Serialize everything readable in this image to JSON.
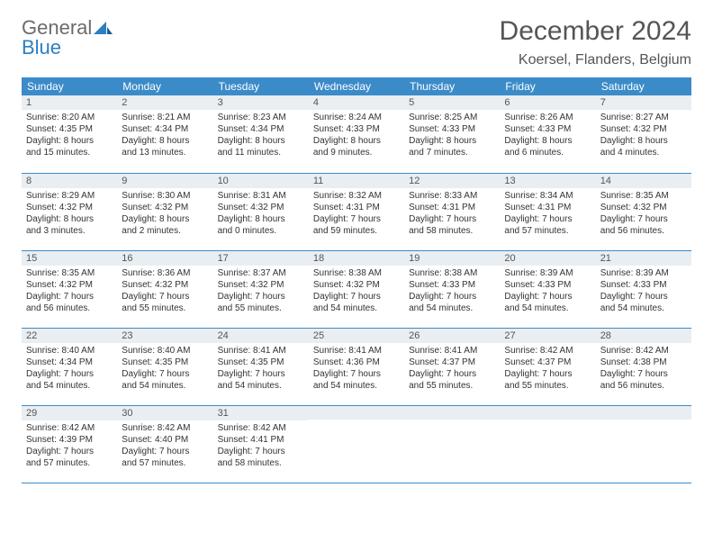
{
  "logo": {
    "word1": "General",
    "word2": "Blue"
  },
  "title": "December 2024",
  "location": "Koersel, Flanders, Belgium",
  "colors": {
    "header_bg": "#3b8bc9",
    "header_text": "#ffffff",
    "daynum_bg": "#e9eef2",
    "text": "#333333",
    "rule": "#3b8bc9",
    "logo_gray": "#6b6b6b",
    "logo_blue": "#2b7fc3"
  },
  "day_headers": [
    "Sunday",
    "Monday",
    "Tuesday",
    "Wednesday",
    "Thursday",
    "Friday",
    "Saturday"
  ],
  "weeks": [
    [
      {
        "n": "1",
        "sr": "Sunrise: 8:20 AM",
        "ss": "Sunset: 4:35 PM",
        "d1": "Daylight: 8 hours",
        "d2": "and 15 minutes."
      },
      {
        "n": "2",
        "sr": "Sunrise: 8:21 AM",
        "ss": "Sunset: 4:34 PM",
        "d1": "Daylight: 8 hours",
        "d2": "and 13 minutes."
      },
      {
        "n": "3",
        "sr": "Sunrise: 8:23 AM",
        "ss": "Sunset: 4:34 PM",
        "d1": "Daylight: 8 hours",
        "d2": "and 11 minutes."
      },
      {
        "n": "4",
        "sr": "Sunrise: 8:24 AM",
        "ss": "Sunset: 4:33 PM",
        "d1": "Daylight: 8 hours",
        "d2": "and 9 minutes."
      },
      {
        "n": "5",
        "sr": "Sunrise: 8:25 AM",
        "ss": "Sunset: 4:33 PM",
        "d1": "Daylight: 8 hours",
        "d2": "and 7 minutes."
      },
      {
        "n": "6",
        "sr": "Sunrise: 8:26 AM",
        "ss": "Sunset: 4:33 PM",
        "d1": "Daylight: 8 hours",
        "d2": "and 6 minutes."
      },
      {
        "n": "7",
        "sr": "Sunrise: 8:27 AM",
        "ss": "Sunset: 4:32 PM",
        "d1": "Daylight: 8 hours",
        "d2": "and 4 minutes."
      }
    ],
    [
      {
        "n": "8",
        "sr": "Sunrise: 8:29 AM",
        "ss": "Sunset: 4:32 PM",
        "d1": "Daylight: 8 hours",
        "d2": "and 3 minutes."
      },
      {
        "n": "9",
        "sr": "Sunrise: 8:30 AM",
        "ss": "Sunset: 4:32 PM",
        "d1": "Daylight: 8 hours",
        "d2": "and 2 minutes."
      },
      {
        "n": "10",
        "sr": "Sunrise: 8:31 AM",
        "ss": "Sunset: 4:32 PM",
        "d1": "Daylight: 8 hours",
        "d2": "and 0 minutes."
      },
      {
        "n": "11",
        "sr": "Sunrise: 8:32 AM",
        "ss": "Sunset: 4:31 PM",
        "d1": "Daylight: 7 hours",
        "d2": "and 59 minutes."
      },
      {
        "n": "12",
        "sr": "Sunrise: 8:33 AM",
        "ss": "Sunset: 4:31 PM",
        "d1": "Daylight: 7 hours",
        "d2": "and 58 minutes."
      },
      {
        "n": "13",
        "sr": "Sunrise: 8:34 AM",
        "ss": "Sunset: 4:31 PM",
        "d1": "Daylight: 7 hours",
        "d2": "and 57 minutes."
      },
      {
        "n": "14",
        "sr": "Sunrise: 8:35 AM",
        "ss": "Sunset: 4:32 PM",
        "d1": "Daylight: 7 hours",
        "d2": "and 56 minutes."
      }
    ],
    [
      {
        "n": "15",
        "sr": "Sunrise: 8:35 AM",
        "ss": "Sunset: 4:32 PM",
        "d1": "Daylight: 7 hours",
        "d2": "and 56 minutes."
      },
      {
        "n": "16",
        "sr": "Sunrise: 8:36 AM",
        "ss": "Sunset: 4:32 PM",
        "d1": "Daylight: 7 hours",
        "d2": "and 55 minutes."
      },
      {
        "n": "17",
        "sr": "Sunrise: 8:37 AM",
        "ss": "Sunset: 4:32 PM",
        "d1": "Daylight: 7 hours",
        "d2": "and 55 minutes."
      },
      {
        "n": "18",
        "sr": "Sunrise: 8:38 AM",
        "ss": "Sunset: 4:32 PM",
        "d1": "Daylight: 7 hours",
        "d2": "and 54 minutes."
      },
      {
        "n": "19",
        "sr": "Sunrise: 8:38 AM",
        "ss": "Sunset: 4:33 PM",
        "d1": "Daylight: 7 hours",
        "d2": "and 54 minutes."
      },
      {
        "n": "20",
        "sr": "Sunrise: 8:39 AM",
        "ss": "Sunset: 4:33 PM",
        "d1": "Daylight: 7 hours",
        "d2": "and 54 minutes."
      },
      {
        "n": "21",
        "sr": "Sunrise: 8:39 AM",
        "ss": "Sunset: 4:33 PM",
        "d1": "Daylight: 7 hours",
        "d2": "and 54 minutes."
      }
    ],
    [
      {
        "n": "22",
        "sr": "Sunrise: 8:40 AM",
        "ss": "Sunset: 4:34 PM",
        "d1": "Daylight: 7 hours",
        "d2": "and 54 minutes."
      },
      {
        "n": "23",
        "sr": "Sunrise: 8:40 AM",
        "ss": "Sunset: 4:35 PM",
        "d1": "Daylight: 7 hours",
        "d2": "and 54 minutes."
      },
      {
        "n": "24",
        "sr": "Sunrise: 8:41 AM",
        "ss": "Sunset: 4:35 PM",
        "d1": "Daylight: 7 hours",
        "d2": "and 54 minutes."
      },
      {
        "n": "25",
        "sr": "Sunrise: 8:41 AM",
        "ss": "Sunset: 4:36 PM",
        "d1": "Daylight: 7 hours",
        "d2": "and 54 minutes."
      },
      {
        "n": "26",
        "sr": "Sunrise: 8:41 AM",
        "ss": "Sunset: 4:37 PM",
        "d1": "Daylight: 7 hours",
        "d2": "and 55 minutes."
      },
      {
        "n": "27",
        "sr": "Sunrise: 8:42 AM",
        "ss": "Sunset: 4:37 PM",
        "d1": "Daylight: 7 hours",
        "d2": "and 55 minutes."
      },
      {
        "n": "28",
        "sr": "Sunrise: 8:42 AM",
        "ss": "Sunset: 4:38 PM",
        "d1": "Daylight: 7 hours",
        "d2": "and 56 minutes."
      }
    ],
    [
      {
        "n": "29",
        "sr": "Sunrise: 8:42 AM",
        "ss": "Sunset: 4:39 PM",
        "d1": "Daylight: 7 hours",
        "d2": "and 57 minutes."
      },
      {
        "n": "30",
        "sr": "Sunrise: 8:42 AM",
        "ss": "Sunset: 4:40 PM",
        "d1": "Daylight: 7 hours",
        "d2": "and 57 minutes."
      },
      {
        "n": "31",
        "sr": "Sunrise: 8:42 AM",
        "ss": "Sunset: 4:41 PM",
        "d1": "Daylight: 7 hours",
        "d2": "and 58 minutes."
      },
      null,
      null,
      null,
      null
    ]
  ]
}
